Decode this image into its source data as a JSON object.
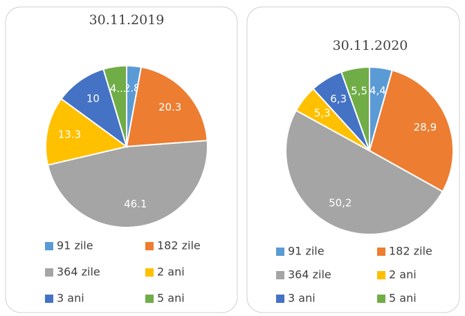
{
  "chart_data": [
    {
      "type": "pie",
      "title": "30.11.2019",
      "categories": [
        "91 zile",
        "182 zile",
        "364 zile",
        "2 ani",
        "3 ani",
        "5 ani"
      ],
      "values": [
        2.8,
        20.3,
        46.1,
        13.3,
        10,
        4.5
      ],
      "value_labels": [
        "2.8",
        "20.3",
        "46.1",
        "13.3",
        "10",
        "4..."
      ],
      "colors": [
        "#5b9bd5",
        "#ed7d31",
        "#a5a5a5",
        "#ffc000",
        "#4472c4",
        "#70ad47"
      ]
    },
    {
      "type": "pie",
      "title": "30.11.2020",
      "categories": [
        "91 zile",
        "182 zile",
        "364 zile",
        "2 ani",
        "3 ani",
        "5 ani"
      ],
      "values": [
        4.4,
        28.9,
        50.2,
        5.3,
        6.3,
        5.5
      ],
      "value_labels": [
        "4,4",
        "28,9",
        "50,2",
        "5,3",
        "6,3",
        "5,5"
      ],
      "colors": [
        "#5b9bd5",
        "#ed7d31",
        "#a5a5a5",
        "#ffc000",
        "#4472c4",
        "#70ad47"
      ]
    }
  ]
}
